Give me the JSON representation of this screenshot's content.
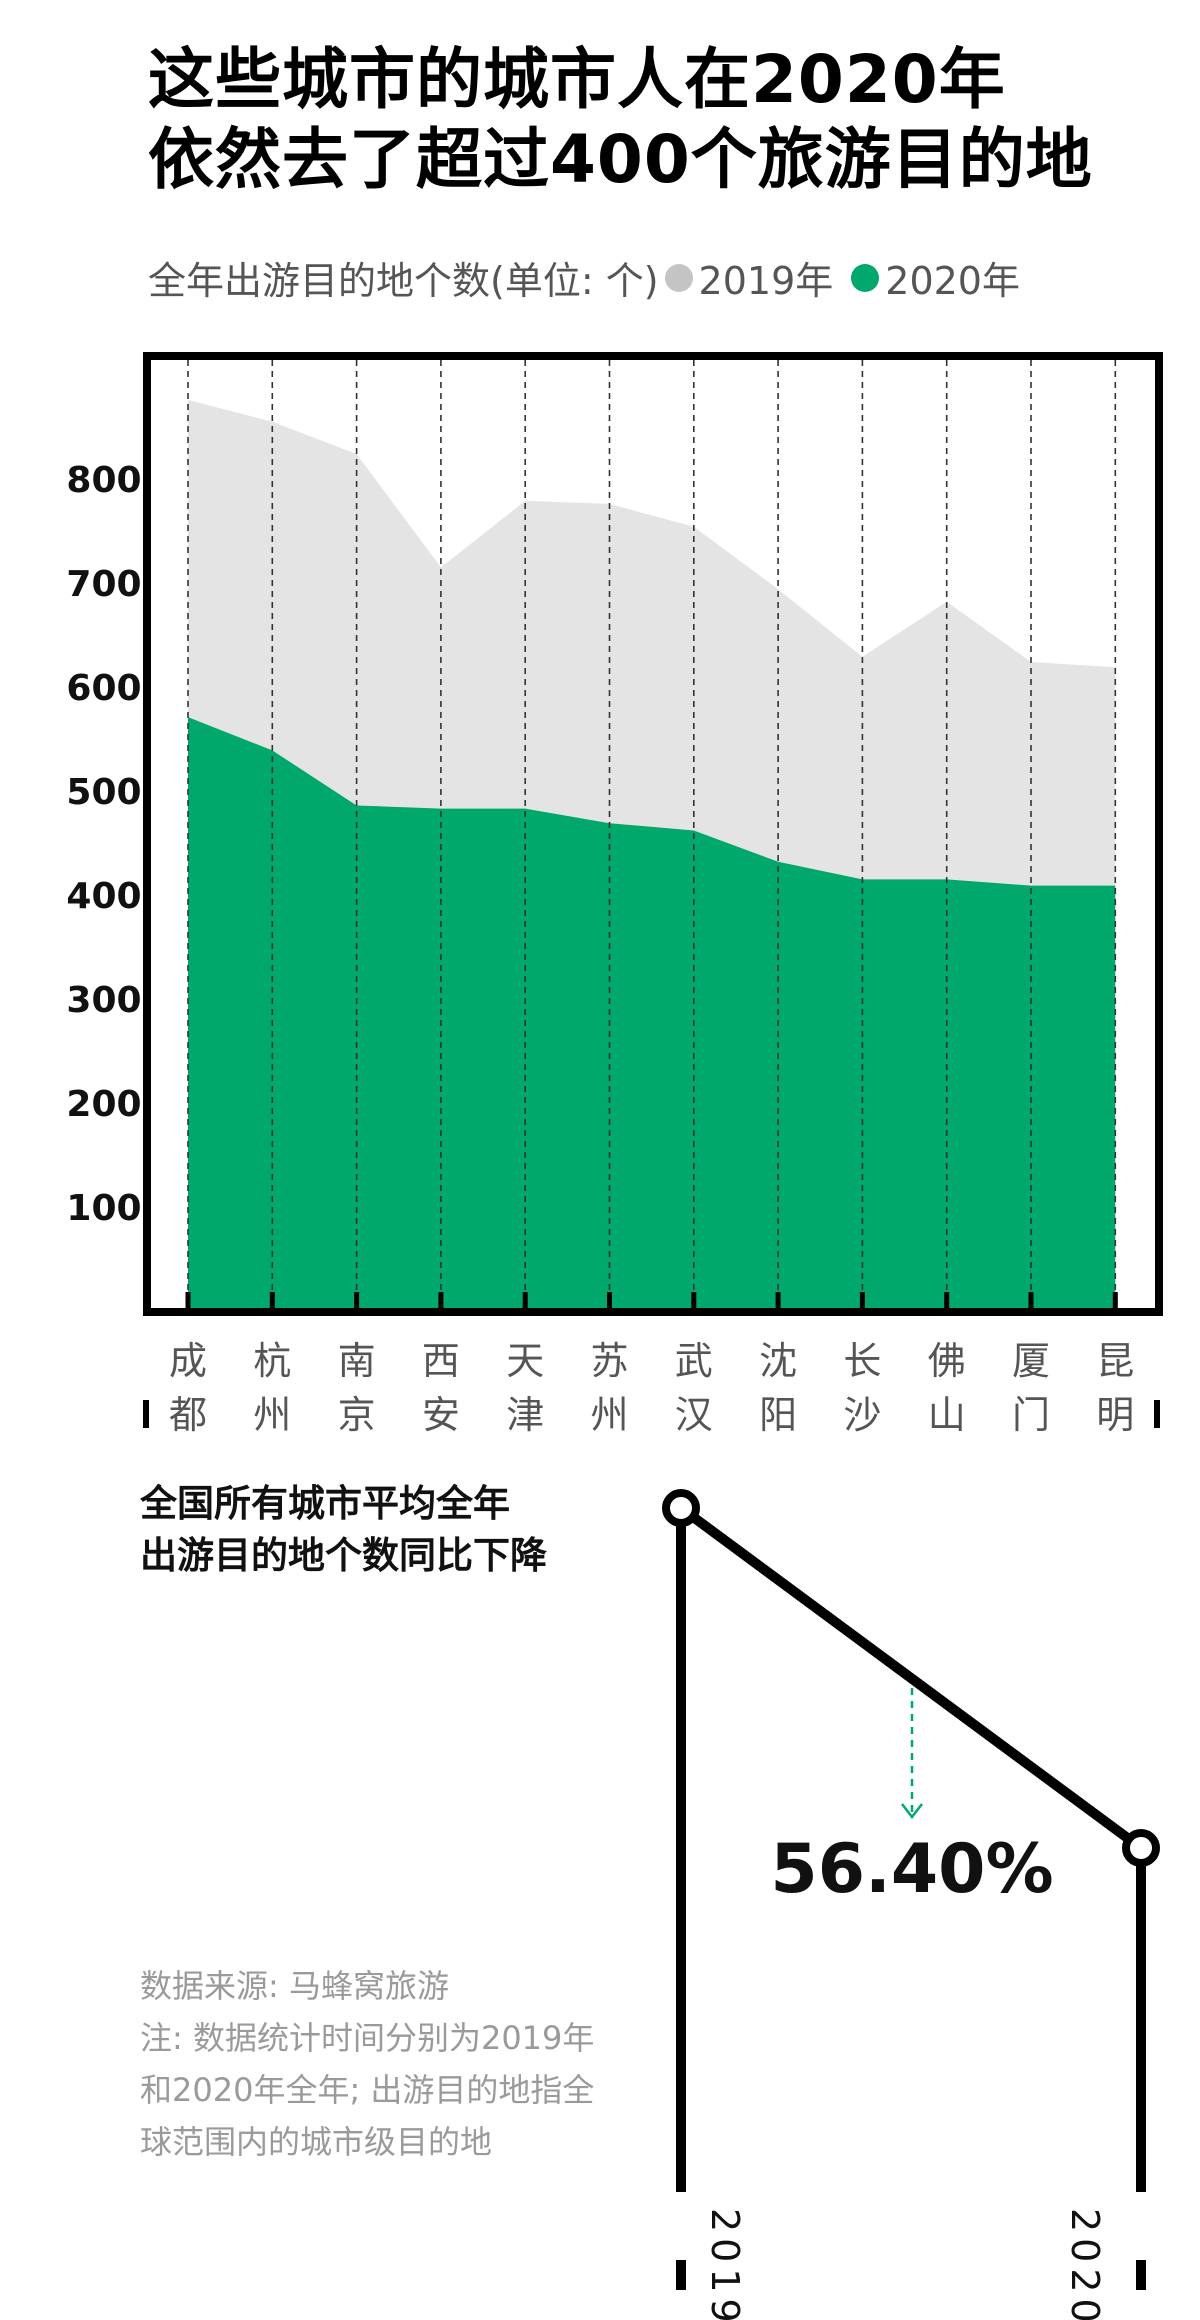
{
  "title_line1": "这些城市的城市人在2020年",
  "title_line2": "依然去了超过400个旅游目的地",
  "legend": {
    "label": "全年出游目的地个数(单位: 个)",
    "series_2019": "2019年",
    "series_2020": "2020年"
  },
  "colors": {
    "s2019": "#e4e4e4",
    "s2020": "#00a86b",
    "dot2019": "#c4c4c4",
    "frame": "#000000"
  },
  "chart_data": {
    "type": "area",
    "categories": [
      "成都",
      "杭州",
      "南京",
      "西安",
      "天津",
      "苏州",
      "武汉",
      "沈阳",
      "长沙",
      "佛山",
      "厦门",
      "昆明"
    ],
    "category_lines": [
      [
        "成",
        "都"
      ],
      [
        "杭",
        "州"
      ],
      [
        "南",
        "京"
      ],
      [
        "西",
        "安"
      ],
      [
        "天",
        "津"
      ],
      [
        "苏",
        "州"
      ],
      [
        "武",
        "汉"
      ],
      [
        "沈",
        "阳"
      ],
      [
        "长",
        "沙"
      ],
      [
        "佛",
        "山"
      ],
      [
        "厦",
        "门"
      ],
      [
        "昆",
        "明"
      ]
    ],
    "series": [
      {
        "name": "2019年",
        "values": [
          877,
          856,
          825,
          716,
          780,
          777,
          755,
          695,
          630,
          683,
          625,
          620
        ]
      },
      {
        "name": "2020年",
        "values": [
          572,
          540,
          487,
          484,
          484,
          470,
          463,
          433,
          416,
          416,
          410,
          410
        ]
      }
    ],
    "yticks": [
      100,
      200,
      300,
      400,
      500,
      600,
      700,
      800
    ],
    "ylim": [
      0,
      920
    ],
    "grid": "vertical dashed lines at each category"
  },
  "decline": {
    "title_line1": "全国所有城市平均全年",
    "title_line2": "出游目的地个数同比下降",
    "value": "56.40%",
    "year_start": "2019",
    "year_end": "2020"
  },
  "footer": {
    "source": "数据来源: 马蜂窝旅游",
    "note": "注: 数据统计时间分别为2019年和2020年全年; 出游目的地指全球范围内的城市级目的地"
  }
}
